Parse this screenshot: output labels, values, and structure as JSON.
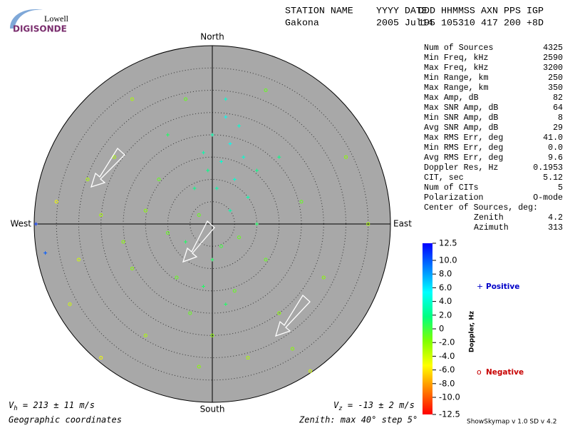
{
  "logo": {
    "line1": "Lowell",
    "line2": "DIGISONDE"
  },
  "header": {
    "columns": [
      {
        "label": "STATION NAME",
        "value": "Gakona"
      },
      {
        "label": "YYYY DATE",
        "value": "2005 Jul14"
      },
      {
        "label": "DDD",
        "value": "195"
      },
      {
        "label": "HHMMSS",
        "value": "105310"
      },
      {
        "label": "AXN",
        "value": "417"
      },
      {
        "label": "PPS",
        "value": "200"
      },
      {
        "label": "IGP",
        "value": "+8D"
      }
    ]
  },
  "stats": {
    "rows": [
      {
        "label": "Num of Sources",
        "value": "4325"
      },
      {
        "label": "Min Freq, kHz",
        "value": "2590"
      },
      {
        "label": "Max Freq, kHz",
        "value": "3200"
      },
      {
        "label": "Min Range, km",
        "value": "250"
      },
      {
        "label": "Max Range, km",
        "value": "350"
      },
      {
        "label": "Max Amp, dB",
        "value": "82"
      },
      {
        "label": "Max SNR Amp, dB",
        "value": "64"
      },
      {
        "label": "Min SNR Amp, dB",
        "value": "8"
      },
      {
        "label": "Avg SNR Amp, dB",
        "value": "29"
      },
      {
        "label": "Max RMS Err, deg",
        "value": "41.0"
      },
      {
        "label": "Min RMS Err, deg",
        "value": "0.0"
      },
      {
        "label": "Avg RMS Err, deg",
        "value": "9.6"
      },
      {
        "label": "Doppler Res, Hz",
        "value": "0.1953"
      },
      {
        "label": "CIT, sec",
        "value": "5.12"
      },
      {
        "label": "Num of CITs",
        "value": "5"
      },
      {
        "label": "Polarization",
        "value": "O-mode"
      },
      {
        "label": "Center of Sources, deg:",
        "value": null
      },
      {
        "label": "Zenith",
        "value": "4.2"
      },
      {
        "label": "Azimuth",
        "value": "313"
      }
    ]
  },
  "footer": {
    "coords": "Geographic coordinates",
    "zenith": "Zenith: max 40°  step 5°",
    "version": "ShowSkymap v 1.0   SD v 4.2",
    "vh": {
      "symbol": "V",
      "sub": "h",
      "text": " = 213 ± 11 m/s"
    },
    "vz": {
      "symbol": "V",
      "sub": "z",
      "text": " = -13 ± 2 m/s"
    }
  },
  "chart_data": {
    "type": "scatter",
    "directions": {
      "north": "North",
      "south": "South",
      "east": "East",
      "west": "West"
    },
    "xlim": [
      -40,
      40
    ],
    "ylim": [
      -40,
      40
    ],
    "rticks": [
      5,
      10,
      15,
      20,
      25,
      30,
      35
    ],
    "x": [
      2,
      4,
      0,
      5,
      3,
      -2,
      7,
      1,
      6,
      3,
      -1,
      8,
      4,
      10,
      -4,
      -10,
      -15,
      -20,
      -25,
      -18,
      -8,
      -5,
      0,
      5,
      12,
      15,
      20,
      -12,
      -22,
      -30,
      -28,
      8,
      -3,
      18,
      25,
      -15,
      -32,
      30,
      -6,
      12,
      -18,
      -35,
      2,
      -3,
      6,
      0,
      -6,
      3,
      10,
      -10,
      15,
      -2,
      -39.6,
      -37.5,
      22,
      -25,
      35
    ],
    "y": [
      14,
      18,
      20,
      10,
      24,
      16,
      15,
      8,
      22,
      28,
      12,
      6,
      3,
      12,
      8,
      -2,
      3,
      -4,
      2,
      -10,
      -12,
      -20,
      -25,
      -15,
      -8,
      -20,
      5,
      10,
      15,
      -8,
      10,
      -30,
      -32,
      -28,
      -12,
      -25,
      -18,
      15,
      28,
      30,
      28,
      5,
      -5,
      2,
      -3,
      -8,
      -4,
      -18,
      0,
      20,
      15,
      -14,
      0,
      -6.5,
      -33,
      -30,
      0
    ],
    "values": [
      4,
      5,
      3,
      4,
      5,
      3,
      4,
      3,
      4,
      4,
      2,
      3,
      3,
      2,
      2,
      -1,
      -2,
      -2,
      -3,
      -2,
      -1,
      -1,
      -2,
      -1,
      -1,
      -2,
      -1,
      -1,
      -3,
      -4,
      -3,
      -3,
      -2,
      -2,
      -2,
      -3,
      -4,
      -2,
      -1,
      -1,
      -3,
      -5,
      0,
      -1,
      -1,
      1,
      1,
      1,
      1,
      1,
      2,
      1,
      11,
      10,
      -4,
      -5,
      -3
    ],
    "colorbar": {
      "label": "Doppler, Hz",
      "lim": [
        -12.5,
        12.5
      ],
      "ticks": [
        12.5,
        {
          "value": 10,
          "label": "10.0"
        },
        {
          "value": 8,
          "label": "8.0"
        },
        {
          "value": 6,
          "label": "6.0"
        },
        {
          "value": 4,
          "label": "4.0"
        },
        {
          "value": 2,
          "label": "2.0"
        },
        0,
        {
          "value": -2,
          "label": "-2.0"
        },
        {
          "value": -4,
          "label": "-4.0"
        },
        {
          "value": -6,
          "label": "-6.0"
        },
        {
          "value": -8,
          "label": "-8.0"
        },
        {
          "value": -10,
          "label": "-10.0"
        },
        -12.5
      ],
      "colors": [
        "#ff0000",
        "#ff8000",
        "#ffff00",
        "#80ff00",
        "#00ff80",
        "#00ffff",
        "#0080ff",
        "#0000ff"
      ]
    },
    "legend": [
      {
        "marker": "+",
        "name": "Positive",
        "color": "#0000c8"
      },
      {
        "marker": "o",
        "name": "Negative",
        "color": "#c80000"
      }
    ]
  }
}
